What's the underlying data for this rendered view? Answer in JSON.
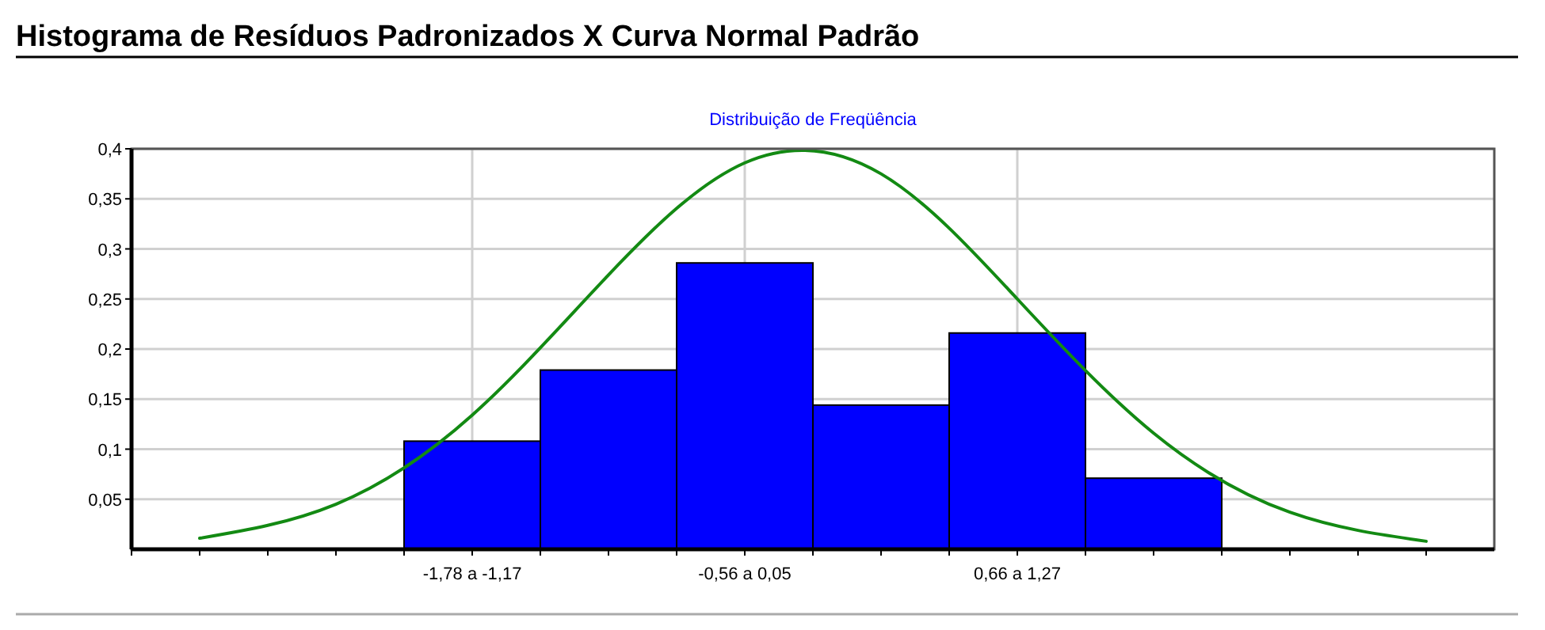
{
  "chart_data": {
    "type": "bar",
    "title": "Histograma de Resíduos Padronizados X Curva Normal Padrão",
    "subtitle": "Distribuição de Freqüência",
    "categories": [
      null,
      null,
      "-1,78 a -1,17",
      null,
      "-0,56 a 0,05",
      null,
      "0,66 a 1,27",
      null,
      null,
      null
    ],
    "series": [
      {
        "color": "#0000ff",
        "values": [
          null,
          null,
          0.108,
          0.179,
          0.286,
          0.144,
          0.216,
          0.071,
          null,
          null
        ]
      },
      {
        "type": "line",
        "color": "#138a13",
        "values": [
          0.011,
          0.045,
          0.134,
          0.274,
          0.386,
          0.375,
          0.25,
          0.116,
          0.037,
          0.008
        ]
      }
    ],
    "ylim": [
      0,
      0.4
    ],
    "yticks": [
      {
        "value": 0.05,
        "label": "0,05"
      },
      {
        "value": 0.1,
        "label": "0,1"
      },
      {
        "value": 0.15,
        "label": "0,15"
      },
      {
        "value": 0.2,
        "label": "0,2"
      },
      {
        "value": 0.25,
        "label": "0,25"
      },
      {
        "value": 0.3,
        "label": "0,3"
      },
      {
        "value": 0.35,
        "label": "0,35"
      },
      {
        "value": 0.4,
        "label": "0,4"
      }
    ],
    "grid": true,
    "marker": "none",
    "line_style": "solid"
  }
}
